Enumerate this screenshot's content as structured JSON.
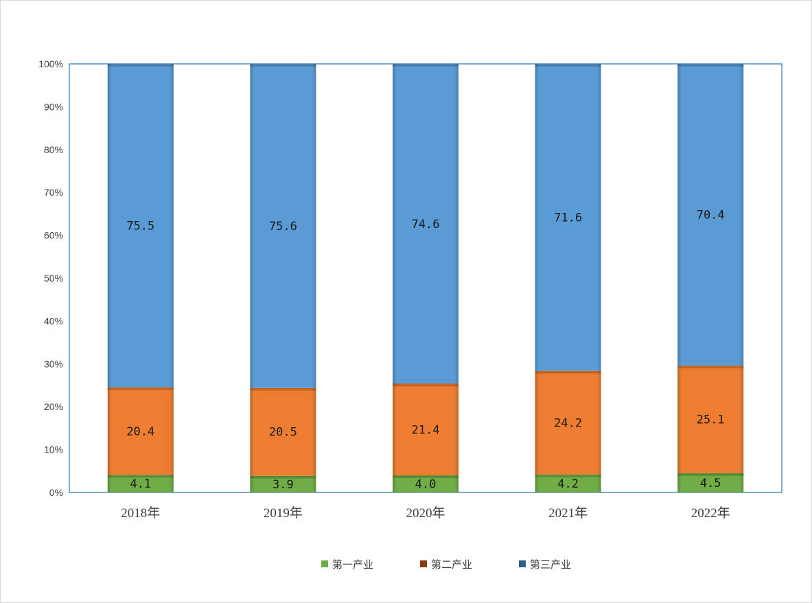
{
  "chart_data": {
    "type": "bar",
    "stacked": true,
    "percent_stacked": true,
    "categories": [
      "2018年",
      "2019年",
      "2020年",
      "2021年",
      "2022年"
    ],
    "series": [
      {
        "name": "第一产业",
        "values": [
          4.1,
          3.9,
          4.0,
          4.2,
          4.5
        ],
        "labels": [
          "4.1",
          "3.9",
          "4.0",
          "4.2",
          "4.5"
        ],
        "color": "#70ad47",
        "legend_color": "#70ad47"
      },
      {
        "name": "第二产业",
        "values": [
          20.4,
          20.5,
          21.4,
          24.2,
          25.1
        ],
        "labels": [
          "20.4",
          "20.5",
          "21.4",
          "24.2",
          "25.1"
        ],
        "color": "#ed7d31",
        "legend_color": "#843c0c"
      },
      {
        "name": "第三产业",
        "values": [
          75.5,
          75.6,
          74.6,
          71.6,
          70.4
        ],
        "labels": [
          "75.5",
          "75.6",
          "74.6",
          "71.6",
          "70.4"
        ],
        "color": "#5b9bd5",
        "legend_color": "#2e5f8a"
      }
    ],
    "y_ticks": [
      "0%",
      "10%",
      "20%",
      "30%",
      "40%",
      "50%",
      "60%",
      "70%",
      "80%",
      "90%",
      "100%"
    ],
    "ylim": [
      0,
      100
    ],
    "grid": false,
    "legend_position": "bottom",
    "plot_border_color": "#4a90c8"
  }
}
